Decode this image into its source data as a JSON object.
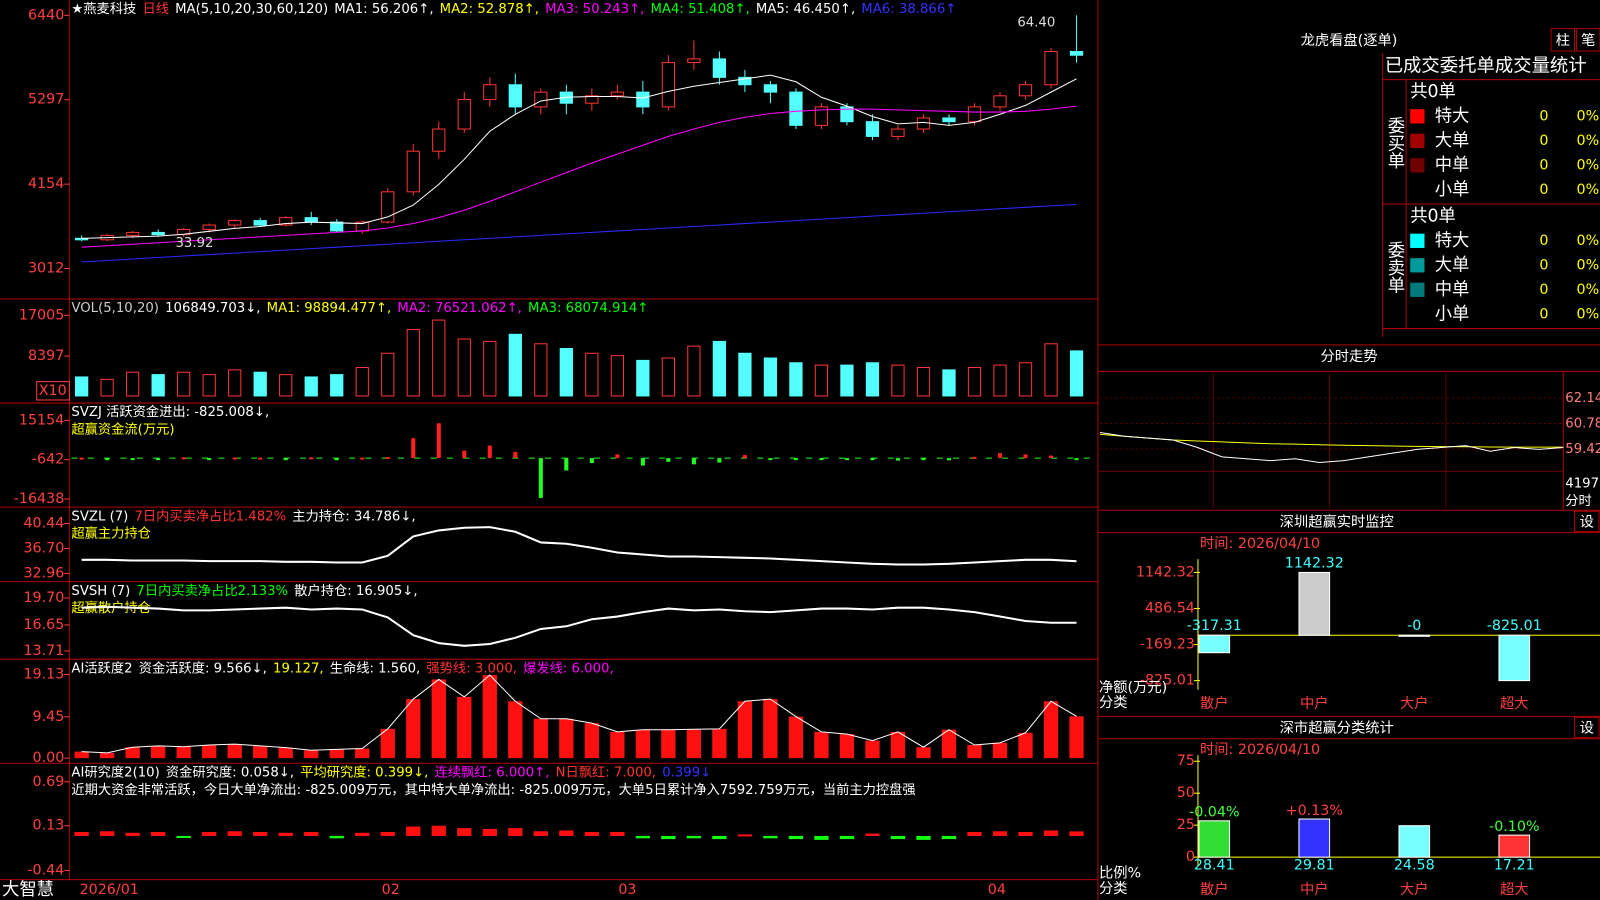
{
  "main": {
    "legend": [
      [
        {
          "text": "★燕麦科技",
          "color": "#ffffff"
        },
        {
          "text": "日线",
          "color": "#ff3333"
        },
        {
          "text": "MA(5,10,20,30,60,120)",
          "color": "#ffffff"
        },
        {
          "text": "MA1: 56.206↑,",
          "color": "#ffffff"
        },
        {
          "text": "MA2: 52.878↑,",
          "color": "#ffff00"
        },
        {
          "text": "MA3: 50.243↑,",
          "color": "#ff00ff"
        },
        {
          "text": "MA4: 51.408↑,",
          "color": "#00ff00"
        },
        {
          "text": "MA5: 46.450↑,",
          "color": "#ffffff"
        },
        {
          "text": "MA6: 38.866↑",
          "color": "#3333ff"
        }
      ]
    ],
    "ylim": [
      2640,
      6537
    ],
    "yticks": [
      6440,
      5297,
      4154,
      3012
    ],
    "up_color": "#ff3333",
    "down_color": "#54ffff",
    "high_label": "64.40",
    "low_label": "33.92",
    "candles": [
      [
        3420,
        3460,
        3380,
        3400
      ],
      [
        3400,
        3480,
        3380,
        3460
      ],
      [
        3460,
        3520,
        3420,
        3500
      ],
      [
        3500,
        3540,
        3440,
        3470
      ],
      [
        3470,
        3560,
        3440,
        3540
      ],
      [
        3540,
        3620,
        3500,
        3600
      ],
      [
        3600,
        3680,
        3560,
        3660
      ],
      [
        3660,
        3700,
        3580,
        3600
      ],
      [
        3600,
        3720,
        3580,
        3700
      ],
      [
        3700,
        3780,
        3600,
        3640
      ],
      [
        3640,
        3680,
        3500,
        3520
      ],
      [
        3520,
        3660,
        3480,
        3640
      ],
      [
        3640,
        4100,
        3620,
        4050
      ],
      [
        4050,
        4700,
        4000,
        4600
      ],
      [
        4600,
        5000,
        4500,
        4900
      ],
      [
        4900,
        5400,
        4850,
        5300
      ],
      [
        5300,
        5600,
        5200,
        5500
      ],
      [
        5500,
        5650,
        5100,
        5200
      ],
      [
        5200,
        5450,
        5100,
        5400
      ],
      [
        5400,
        5500,
        5100,
        5250
      ],
      [
        5250,
        5450,
        5150,
        5350
      ],
      [
        5350,
        5500,
        5300,
        5400
      ],
      [
        5400,
        5550,
        5100,
        5200
      ],
      [
        5200,
        5900,
        5150,
        5800
      ],
      [
        5800,
        6100,
        5700,
        5850
      ],
      [
        5850,
        5950,
        5500,
        5600
      ],
      [
        5600,
        5700,
        5400,
        5500
      ],
      [
        5500,
        5550,
        5250,
        5400
      ],
      [
        5400,
        5450,
        4900,
        4950
      ],
      [
        4950,
        5250,
        4900,
        5200
      ],
      [
        5200,
        5250,
        4950,
        5000
      ],
      [
        5000,
        5100,
        4750,
        4800
      ],
      [
        4800,
        4950,
        4750,
        4900
      ],
      [
        4900,
        5100,
        4850,
        5050
      ],
      [
        5050,
        5100,
        4950,
        5000
      ],
      [
        5000,
        5250,
        4950,
        5200
      ],
      [
        5200,
        5400,
        5150,
        5350
      ],
      [
        5350,
        5550,
        5300,
        5500
      ],
      [
        5500,
        6000,
        5450,
        5950
      ],
      [
        5950,
        6440,
        5800,
        5900
      ]
    ],
    "lines": [
      {
        "color": "#ffffff",
        "values": [
          3420,
          3430,
          3440,
          3450,
          3475,
          3515,
          3555,
          3580,
          3620,
          3640,
          3630,
          3620,
          3710,
          3870,
          4150,
          4490,
          4870,
          5100,
          5280,
          5330,
          5340,
          5340,
          5320,
          5410,
          5480,
          5530,
          5580,
          5630,
          5540,
          5330,
          5210,
          5070,
          4970,
          4990,
          4950,
          4990,
          5100,
          5220,
          5400,
          5580
        ]
      },
      {
        "color": "#ff00ff",
        "values": [
          3300,
          3320,
          3340,
          3360,
          3380,
          3400,
          3420,
          3440,
          3460,
          3480,
          3500,
          3520,
          3560,
          3620,
          3700,
          3800,
          3920,
          4050,
          4180,
          4310,
          4440,
          4560,
          4680,
          4800,
          4900,
          4990,
          5060,
          5110,
          5140,
          5160,
          5170,
          5170,
          5160,
          5150,
          5140,
          5130,
          5130,
          5140,
          5170,
          5210
        ]
      },
      {
        "color": "#2a2aff",
        "values": [
          3100,
          3120,
          3140,
          3160,
          3180,
          3200,
          3220,
          3240,
          3260,
          3280,
          3300,
          3320,
          3340,
          3360,
          3380,
          3400,
          3420,
          3440,
          3460,
          3480,
          3500,
          3520,
          3540,
          3560,
          3580,
          3600,
          3620,
          3640,
          3660,
          3680,
          3700,
          3720,
          3740,
          3760,
          3780,
          3800,
          3820,
          3840,
          3860,
          3880
        ]
      }
    ]
  },
  "volume": {
    "legend": [
      [
        {
          "text": "VOL(5,10,20)",
          "color": "#cccccc"
        },
        {
          "text": "106849.703↓,",
          "color": "#ffffff"
        },
        {
          "text": "MA1: 98894.477↑,",
          "color": "#ffff00"
        },
        {
          "text": "MA2: 76521.062↑,",
          "color": "#ff00ff"
        },
        {
          "text": "MA3: 68074.914↑",
          "color": "#00ff00"
        }
      ]
    ],
    "scale_label": "X10",
    "ylim": [
      -1070,
      20020
    ],
    "yticks": [
      17005,
      8397
    ],
    "values": [
      4000,
      3500,
      5000,
      4500,
      5000,
      4500,
      5500,
      5000,
      4500,
      4000,
      4500,
      6000,
      9000,
      14000,
      16000,
      12000,
      11500,
      13000,
      11000,
      10000,
      9000,
      8500,
      7500,
      8000,
      10500,
      11500,
      9000,
      8000,
      7000,
      6500,
      6500,
      7000,
      6500,
      6000,
      5500,
      6000,
      6500,
      7000,
      11000,
      9500
    ]
  },
  "svzj": {
    "legend": [
      [
        {
          "text": "SVZJ  活跃资金进出: -825.008↓,",
          "color": "#ffffff"
        }
      ],
      [
        {
          "text": "超赢资金流(万元)",
          "color": "#ffff00"
        }
      ]
    ],
    "ylim": [
      -18900,
      21300
    ],
    "yticks": [
      15154,
      -642,
      -16438
    ],
    "pos_color": "#ff2020",
    "neg_color": "#20ff20",
    "values": [
      200,
      -300,
      -200,
      -400,
      300,
      -200,
      250,
      200,
      -300,
      300,
      -400,
      200,
      400,
      8000,
      14000,
      3000,
      5000,
      2500,
      -16000,
      -5000,
      -2000,
      1500,
      -3000,
      -1500,
      -2500,
      -1800,
      1200,
      -400,
      -700,
      -500,
      -600,
      -800,
      -1000,
      -700,
      -900,
      500,
      2000,
      1500,
      1000,
      -825
    ]
  },
  "svzl": {
    "legend": [
      [
        {
          "text": "SVZL (7)",
          "color": "#ffffff"
        },
        {
          "text": "7日内买卖净占比1.482%",
          "color": "#ff3333"
        },
        {
          "text": "主力持仓: 34.786↓,",
          "color": "#ffffff"
        }
      ],
      [
        {
          "text": "超赢主力持仓",
          "color": "#ffff00"
        }
      ]
    ],
    "ylim": [
      32.04,
      42.58
    ],
    "yticks": [
      40.44,
      {
        "value": 36.7,
        "label": "36.70"
      },
      32.96
    ],
    "color": "#ffffff",
    "values": [
      35.0,
      35.0,
      34.9,
      34.9,
      34.9,
      34.8,
      34.8,
      34.8,
      34.7,
      34.7,
      34.6,
      34.6,
      35.6,
      38.5,
      39.4,
      39.8,
      39.9,
      39.2,
      37.6,
      37.4,
      36.8,
      36.1,
      35.8,
      35.5,
      35.5,
      35.4,
      35.3,
      35.2,
      35.0,
      34.8,
      34.6,
      34.4,
      34.3,
      34.3,
      34.4,
      34.6,
      34.8,
      35.0,
      35.0,
      34.786
    ]
  },
  "svsh": {
    "legend": [
      [
        {
          "text": "SVSH (7)",
          "color": "#ffffff"
        },
        {
          "text": "7日内买卖净占比2.133%",
          "color": "#00ff00"
        },
        {
          "text": "散户持仓: 16.905↓,",
          "color": "#ffffff"
        }
      ],
      [
        {
          "text": "超赢散户持仓",
          "color": "#ffff00"
        }
      ]
    ],
    "ylim": [
      13.02,
      21.31
    ],
    "yticks": [
      {
        "value": 19.7,
        "label": "19.70"
      },
      16.65,
      13.71
    ],
    "color": "#ffffff",
    "values": [
      18.6,
      18.7,
      18.6,
      18.5,
      18.3,
      18.3,
      18.4,
      18.5,
      18.6,
      18.4,
      18.5,
      18.4,
      17.5,
      15.5,
      14.6,
      14.3,
      14.5,
      15.2,
      16.2,
      16.5,
      17.3,
      17.6,
      18.1,
      18.5,
      18.3,
      18.4,
      18.2,
      18.1,
      18.3,
      18.5,
      18.5,
      18.4,
      18.6,
      18.6,
      18.4,
      18.1,
      17.6,
      17.1,
      16.9,
      16.905
    ]
  },
  "activity": {
    "legend": [
      [
        {
          "text": "AI活跃度2",
          "color": "#ffffff"
        },
        {
          "text": "资金活跃度: 9.566↓,",
          "color": "#ffffff"
        },
        {
          "text": "19.127,",
          "color": "#ffff00"
        },
        {
          "text": "生命线: 1.560,",
          "color": "#ffffff"
        },
        {
          "text": "强势线: 3.000,",
          "color": "#ff3333"
        },
        {
          "text": "爆发线: 6.000,",
          "color": "#ff00ff"
        }
      ]
    ],
    "ylim": [
      -0.47,
      22.16
    ],
    "yticks": [
      19.13,
      9.45,
      {
        "value": 0,
        "label": "0.00"
      }
    ],
    "color": "#ff1010",
    "values": [
      1.5,
      1.2,
      2.5,
      2.8,
      2.6,
      3.0,
      3.2,
      2.8,
      2.4,
      1.8,
      2.0,
      2.2,
      6.7,
      13.5,
      18.0,
      14.0,
      19.0,
      13.0,
      9.0,
      9.0,
      8.0,
      6.0,
      6.5,
      6.5,
      6.6,
      6.7,
      13.0,
      13.5,
      9.5,
      6.0,
      5.5,
      4.0,
      6.0,
      2.5,
      6.5,
      3.0,
      3.5,
      5.8,
      13.0,
      9.566
    ]
  },
  "research": {
    "legend": [
      [
        {
          "text": "AI研究度2(10)",
          "color": "#ffffff"
        },
        {
          "text": "资金研究度: 0.058↓,",
          "color": "#ffffff"
        },
        {
          "text": "平均研究度: 0.399↓,",
          "color": "#ffff00"
        },
        {
          "text": "连续飘红: 6.000↑,",
          "color": "#ff00ff"
        },
        {
          "text": "N日飘红: 7.000,",
          "color": "#ff3333"
        },
        {
          "text": "0.399↓",
          "color": "#3333ff"
        }
      ],
      [
        {
          "text": "近期大资金非常活跃，今日大单净流出: -825.009万元，其中特大单净流出: -825.009万元，大单5日累计净入7592.759万元，当前主力控盘强",
          "color": "#ffffff"
        }
      ]
    ],
    "ylim": [
      -0.53,
      0.9
    ],
    "yticks": [
      0.69,
      0.13,
      -0.44
    ],
    "pos_color": "#ff1010",
    "neg_color": "#10ff10",
    "values": [
      0.05,
      0.06,
      0.04,
      0.05,
      -0.02,
      0.05,
      0.06,
      0.05,
      0.04,
      0.05,
      -0.03,
      0.04,
      0.05,
      0.12,
      0.13,
      0.1,
      0.09,
      0.1,
      0.06,
      0.07,
      0.05,
      0.05,
      -0.03,
      -0.04,
      -0.03,
      -0.04,
      0.02,
      -0.03,
      -0.04,
      -0.05,
      -0.04,
      0.03,
      -0.04,
      -0.05,
      -0.04,
      0.05,
      0.06,
      0.05,
      0.07,
      0.058
    ]
  },
  "x_axis": {
    "labels": [
      "2026/01",
      "02",
      "03",
      "04"
    ],
    "brand": "大智慧"
  },
  "dragon": {
    "title": "龙虎看盘(逐单)",
    "buttons": [
      "柱",
      "笔"
    ],
    "heading": "已成交委托单成交量统计",
    "groups": [
      {
        "label": "委买单",
        "total": "共0单",
        "rows": [
          {
            "name": "特大",
            "count": 0,
            "pct": "0%",
            "color": "#ff0000"
          },
          {
            "name": "大单",
            "count": 0,
            "pct": "0%",
            "color": "#a00000"
          },
          {
            "name": "中单",
            "count": 0,
            "pct": "0%",
            "color": "#700000"
          },
          {
            "name": "小单",
            "count": 0,
            "pct": "0%"
          }
        ]
      },
      {
        "label": "委卖单",
        "total": "共0单",
        "rows": [
          {
            "name": "特大",
            "count": 0,
            "pct": "0%",
            "color": "#00ffff"
          },
          {
            "name": "大单",
            "count": 0,
            "pct": "0%",
            "color": "#009a9a"
          },
          {
            "name": "中单",
            "count": 0,
            "pct": "0%",
            "color": "#007a7a"
          },
          {
            "name": "小单",
            "count": 0,
            "pct": "0%"
          }
        ]
      }
    ]
  },
  "intraday": {
    "title": "分时走势",
    "ylim": [
      57.79,
      63.45
    ],
    "yticks": [
      62.14,
      60.78,
      59.42
    ],
    "vol_max": 4197,
    "vol_label": "分时",
    "price": [
      60.3,
      60.1,
      60.0,
      59.9,
      59.5,
      59.0,
      58.9,
      58.8,
      58.9,
      58.7,
      58.8,
      59.0,
      59.2,
      59.4,
      59.5,
      59.6,
      59.3,
      59.5,
      59.4,
      59.5
    ],
    "average": [
      60.2,
      60.1,
      60.0,
      59.9,
      59.85,
      59.8,
      59.75,
      59.7,
      59.68,
      59.65,
      59.62,
      59.6,
      59.58,
      59.56,
      59.55,
      59.54,
      59.53,
      59.52,
      59.52,
      59.52
    ]
  },
  "monitor": {
    "title": "深圳超赢实时监控",
    "button": "设",
    "time": "时间: 2026/04/10",
    "y_label": "净额(万元)",
    "x_label": "分类",
    "ylim": [
      -917.8,
      1383.6
    ],
    "yticks": [
      1142.32,
      486.54,
      -169.23,
      -825.01
    ],
    "categories": [
      "散户",
      "中户",
      "大户",
      "超大"
    ],
    "values": [
      -317.31,
      1142.32,
      0,
      -825.01
    ],
    "value_labels": [
      "-317.31",
      "1142.32",
      "-0",
      "-825.01"
    ],
    "colors": [
      "#7ff",
      "#ccc",
      "#7ff",
      "#7ff"
    ]
  },
  "stats": {
    "title": "深市超赢分类统计",
    "button": "设",
    "time": "时间: 2026/04/10",
    "y_label": "比例%",
    "x_label": "分类",
    "ylim": [
      -4,
      79.8
    ],
    "yticks": [
      75,
      50,
      25,
      0
    ],
    "categories": [
      "散户",
      "中户",
      "大户",
      "超大"
    ],
    "values": [
      28.41,
      29.81,
      24.58,
      17.21
    ],
    "changes": [
      "-0.04%",
      "+0.13%",
      "",
      "-0.10%"
    ],
    "colors": [
      "#33dd33",
      "#3333ff",
      "#7ff",
      "#ff3333"
    ]
  }
}
